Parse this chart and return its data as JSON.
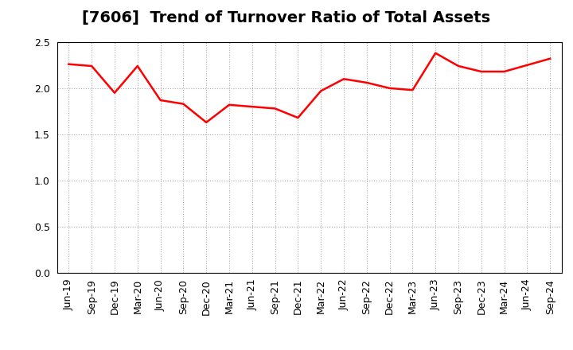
{
  "title": "[7606]  Trend of Turnover Ratio of Total Assets",
  "line_color": "#FF0000",
  "background_color": "#FFFFFF",
  "grid_color": "#AAAAAA",
  "ylim": [
    0.0,
    2.5
  ],
  "yticks": [
    0.0,
    0.5,
    1.0,
    1.5,
    2.0,
    2.5
  ],
  "labels": [
    "Jun-19",
    "Sep-19",
    "Dec-19",
    "Mar-20",
    "Jun-20",
    "Sep-20",
    "Dec-20",
    "Mar-21",
    "Jun-21",
    "Sep-21",
    "Dec-21",
    "Mar-22",
    "Jun-22",
    "Sep-22",
    "Dec-22",
    "Mar-23",
    "Jun-23",
    "Sep-23",
    "Dec-23",
    "Mar-24",
    "Jun-24",
    "Sep-24"
  ],
  "values": [
    2.26,
    2.24,
    1.95,
    2.24,
    1.87,
    1.83,
    1.63,
    1.82,
    1.8,
    1.78,
    1.68,
    1.97,
    2.1,
    2.06,
    2.0,
    1.98,
    2.38,
    2.24,
    2.18,
    2.18,
    2.25,
    2.32
  ],
  "title_fontsize": 14,
  "tick_fontsize": 9,
  "line_width": 1.8
}
